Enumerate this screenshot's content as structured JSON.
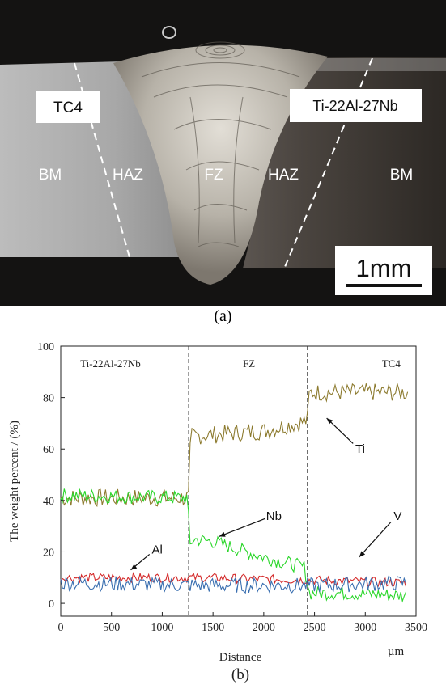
{
  "micrograph": {
    "left_label": "TC4",
    "right_label": "Ti-22Al-27Nb",
    "zones": [
      "BM",
      "HAZ",
      "FZ",
      "HAZ",
      "BM"
    ],
    "scale_bar": "1mm",
    "caption": "(a)"
  },
  "chart_data": {
    "type": "line",
    "ylabel": "The weight percent / (%)",
    "xlabel": "Distance",
    "x_unit": "µm",
    "caption": "(b)",
    "xlim": [
      0,
      3500
    ],
    "ylim": [
      -5,
      100
    ],
    "xticks": [
      0,
      500,
      1000,
      1500,
      2000,
      2500,
      3000,
      3500
    ],
    "yticks": [
      0,
      20,
      40,
      60,
      80,
      100
    ],
    "regions": [
      "Ti-22Al-27Nb",
      "FZ",
      "TC4"
    ],
    "boundaries": [
      1260,
      2430
    ],
    "series": [
      {
        "name": "Ti",
        "color": "#8c7a2e",
        "x": [
          0,
          1260,
          1280,
          1300,
          2000,
          2430,
          2450,
          3420
        ],
        "values": [
          41,
          41,
          65,
          65,
          67,
          71,
          82,
          82
        ],
        "noise": 3.5
      },
      {
        "name": "Nb",
        "color": "#29d629",
        "x": [
          0,
          1250,
          1270,
          1300,
          1500,
          2000,
          2400,
          2450,
          2800,
          3400
        ],
        "values": [
          42,
          41,
          22,
          25,
          24,
          18,
          14,
          4,
          4,
          3
        ],
        "noise": 2.8
      },
      {
        "name": "Al",
        "color": "#d42a2a",
        "x": [
          0,
          1300,
          2500,
          3400
        ],
        "values": [
          10,
          10,
          9,
          8
        ],
        "noise": 1.8
      },
      {
        "name": "V",
        "color": "#3a6fb0",
        "x": [
          0,
          1300,
          2500,
          3400
        ],
        "values": [
          8,
          7,
          7,
          8
        ],
        "noise": 3.0
      }
    ],
    "annotations": [
      {
        "text": "Ti",
        "x": 2950,
        "y": 60,
        "arrow_to_x": 2620,
        "arrow_to_y": 72
      },
      {
        "text": "Nb",
        "x": 2100,
        "y": 34,
        "arrow_to_x": 1560,
        "arrow_to_y": 26
      },
      {
        "text": "Al",
        "x": 950,
        "y": 21,
        "arrow_to_x": 690,
        "arrow_to_y": 13
      },
      {
        "text": "V",
        "x": 3320,
        "y": 34,
        "arrow_to_x": 2940,
        "arrow_to_y": 18
      }
    ]
  }
}
